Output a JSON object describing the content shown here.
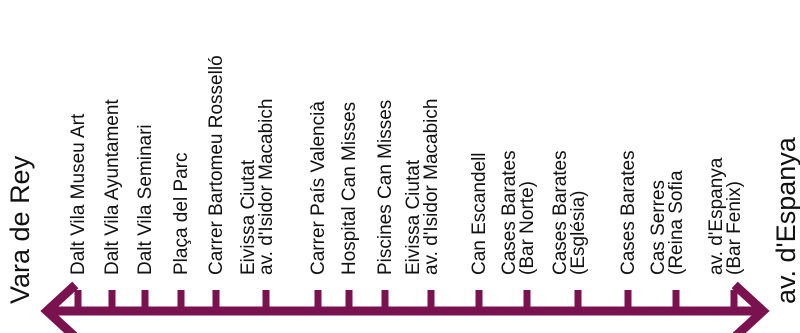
{
  "colors": {
    "route": "#7a1250",
    "text": "#111111"
  },
  "terminals": {
    "start": "Vara de Rey",
    "end": "av. d'Espanya"
  },
  "stops": [
    {
      "lines": [
        "Dalt Vila Museu Art"
      ]
    },
    {
      "lines": [
        "Dalt Vila Ayuntament"
      ]
    },
    {
      "lines": [
        "Dalt Vila Seminari"
      ]
    },
    {
      "lines": [
        "Plaça del Parc"
      ]
    },
    {
      "lines": [
        "Carrer Bartomeu Rosselló"
      ]
    },
    {
      "lines": [
        "Eivissa Ciutat",
        "av. d'Isidor Macabich"
      ]
    },
    {
      "lines": [
        "Carrer País Valencià"
      ]
    },
    {
      "lines": [
        "Hospital Can Misses"
      ]
    },
    {
      "lines": [
        "Piscines Can Misses"
      ]
    },
    {
      "lines": [
        "Eivissa Ciutat",
        "av. d'Isidor Macabich"
      ]
    },
    {
      "lines": [
        "Can Escandell"
      ]
    },
    {
      "lines": [
        "Cases Barates",
        "(Bar Norte)"
      ]
    },
    {
      "lines": [
        "Cases Barates",
        "(Església)"
      ]
    },
    {
      "lines": [
        "Cases Barates"
      ]
    },
    {
      "lines": [
        "Cas Serres",
        "(Reina Sofia"
      ]
    },
    {
      "lines": [
        "av. d'Espanya",
        "(Bar Fenix)"
      ]
    }
  ]
}
